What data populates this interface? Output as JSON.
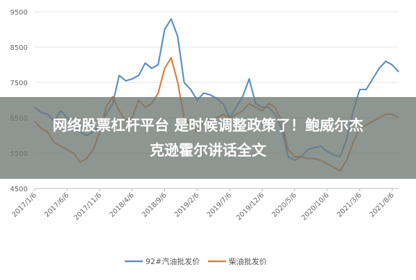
{
  "chart_data": {
    "type": "line",
    "categories": [
      "2017/1/6",
      null,
      null,
      null,
      null,
      "2017/6/6",
      null,
      null,
      null,
      null,
      "2017/11/6",
      null,
      null,
      null,
      null,
      "2018/4/6",
      null,
      null,
      null,
      null,
      "2018/9/6",
      null,
      null,
      null,
      null,
      "2019/2/6",
      null,
      null,
      null,
      null,
      "2019/7/6",
      null,
      null,
      null,
      null,
      "2019/12/6",
      null,
      null,
      null,
      null,
      "2020/5/6",
      null,
      null,
      null,
      null,
      "2020/10/6",
      null,
      null,
      null,
      null,
      "2021/3/6",
      null,
      null,
      null,
      null,
      "2021/8/6",
      null
    ],
    "series": [
      {
        "name": "92#汽油批发价",
        "color": "#5b8fc9",
        "values": [
          6800,
          6650,
          6600,
          6400,
          6700,
          6500,
          6300,
          6100,
          6000,
          6100,
          6300,
          6600,
          6900,
          7700,
          7550,
          7600,
          7700,
          8050,
          7900,
          8000,
          9000,
          9300,
          8800,
          7500,
          7300,
          7000,
          7200,
          7150,
          7050,
          6900,
          6500,
          6800,
          7100,
          7600,
          6900,
          6800,
          6800,
          6600,
          6200,
          5400,
          5300,
          5400,
          5600,
          5650,
          5700,
          5550,
          5450,
          5400,
          5900,
          6700,
          7300,
          7300,
          7600,
          7900,
          8100,
          8000,
          7800
        ]
      },
      {
        "name": "柴油批发价",
        "color": "#e07b39",
        "values": [
          6400,
          6200,
          6100,
          5800,
          5700,
          5600,
          5500,
          5250,
          5350,
          5600,
          6100,
          6800,
          7100,
          6700,
          6400,
          6500,
          7000,
          6800,
          6900,
          7200,
          7900,
          8200,
          7500,
          6500,
          6300,
          6100,
          6350,
          6450,
          6500,
          6600,
          6500,
          6600,
          6700,
          6900,
          6800,
          6700,
          6900,
          6800,
          6400,
          5600,
          5400,
          5400,
          5350,
          5350,
          5300,
          5200,
          5100,
          5000,
          5300,
          5800,
          6200,
          6300,
          6400,
          6500,
          6600,
          6600,
          6500
        ]
      }
    ],
    "ylim": [
      4500,
      9500
    ],
    "yticks": [
      4500,
      5500,
      6500,
      7500,
      8500,
      9500
    ],
    "grid": true
  },
  "banner": {
    "lines": [
      "网络股票杠杆平台 是时候调整政策了！鲍威尔杰",
      "克逊霍尔讲话全文"
    ]
  }
}
